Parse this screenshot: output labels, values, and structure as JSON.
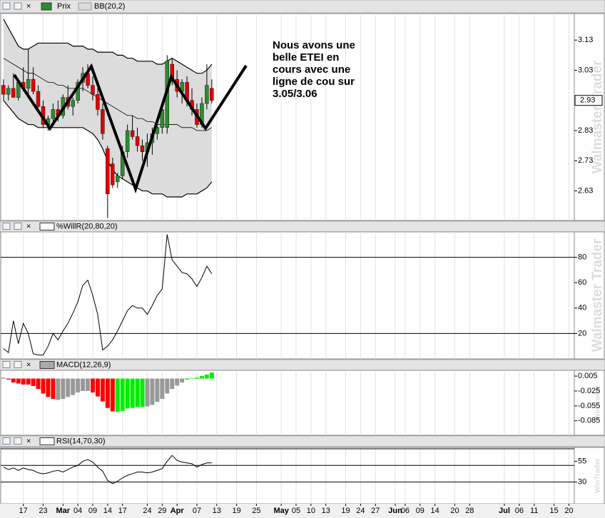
{
  "x_axis": {
    "xlim": [
      -0.7,
      115.1
    ],
    "grid": true,
    "xticks": [
      {
        "value": 4,
        "label": "17"
      },
      {
        "value": 8,
        "label": "23"
      },
      {
        "value": 12,
        "label": "Mar"
      },
      {
        "value": 15,
        "label": "04"
      },
      {
        "value": 18,
        "label": "09"
      },
      {
        "value": 21,
        "label": "14"
      },
      {
        "value": 24,
        "label": "17"
      },
      {
        "value": 29,
        "label": "24"
      },
      {
        "value": 32,
        "label": "29"
      },
      {
        "value": 35,
        "label": "Apr"
      },
      {
        "value": 39,
        "label": "07"
      },
      {
        "value": 43,
        "label": "13"
      },
      {
        "value": 47,
        "label": "19"
      },
      {
        "value": 51,
        "label": "25"
      },
      {
        "value": 56,
        "label": "May"
      },
      {
        "value": 59,
        "label": "05"
      },
      {
        "value": 62,
        "label": "10"
      },
      {
        "value": 65,
        "label": "13"
      },
      {
        "value": 69,
        "label": "19"
      },
      {
        "value": 72,
        "label": "24"
      },
      {
        "value": 75,
        "label": "27"
      },
      {
        "value": 79,
        "label": "Jun"
      },
      {
        "value": 81,
        "label": "06"
      },
      {
        "value": 84,
        "label": "09"
      },
      {
        "value": 87,
        "label": "14"
      },
      {
        "value": 91,
        "label": "20"
      },
      {
        "value": 94,
        "label": "28"
      },
      {
        "value": 101,
        "label": "Jul"
      },
      {
        "value": 104,
        "label": "06"
      },
      {
        "value": 107,
        "label": "11"
      },
      {
        "value": 111,
        "label": "15"
      },
      {
        "value": 114,
        "label": "20"
      }
    ]
  },
  "watermarks": [
    "Walmaster Trader",
    "WinTrader"
  ],
  "chart_data": [
    {
      "type": "candlestick",
      "title": "Prix",
      "up_color": "#2e8b2e",
      "down_color": "#e00000",
      "ylim": [
        2.532,
        3.218
      ],
      "yticks": [
        2.63,
        2.73,
        2.83,
        3.03,
        3.13
      ],
      "last_price": 2.93,
      "annotation": "Nous avons une belle ETEI en cours avec une ligne de cou sur 3.05/3.06",
      "open": [
        2.98,
        2.95,
        2.97,
        2.94,
        2.99,
        2.97,
        3.0,
        2.96,
        2.91,
        2.85,
        2.87,
        2.9,
        2.88,
        2.94,
        2.91,
        2.93,
        2.99,
        3.02,
        2.98,
        2.95,
        2.9,
        2.77,
        2.72,
        2.66,
        2.68,
        2.76,
        2.83,
        2.81,
        2.78,
        2.76,
        2.79,
        2.82,
        2.84,
        2.84,
        3.05,
        3.0,
        2.96,
        2.99,
        2.93,
        2.9,
        2.85,
        2.92,
        2.97
      ],
      "high": [
        3.0,
        2.98,
        3.02,
        3.0,
        3.04,
        3.1,
        3.04,
        2.98,
        2.93,
        2.88,
        2.92,
        2.93,
        2.95,
        2.98,
        2.94,
        3.0,
        3.04,
        3.05,
        3.01,
        2.97,
        2.92,
        2.78,
        2.74,
        2.69,
        2.78,
        2.85,
        2.88,
        2.84,
        2.8,
        2.82,
        2.84,
        2.86,
        2.92,
        3.08,
        3.07,
        3.03,
        3.0,
        3.01,
        2.97,
        2.92,
        2.94,
        3.05,
        3.0
      ],
      "low": [
        2.93,
        2.93,
        2.94,
        2.93,
        2.96,
        2.95,
        2.95,
        2.9,
        2.84,
        2.83,
        2.85,
        2.86,
        2.87,
        2.9,
        2.88,
        2.92,
        2.96,
        2.97,
        2.93,
        2.88,
        2.8,
        2.54,
        2.64,
        2.64,
        2.67,
        2.74,
        2.8,
        2.76,
        2.73,
        2.71,
        2.75,
        2.8,
        2.82,
        2.82,
        2.98,
        2.94,
        2.92,
        2.91,
        2.88,
        2.84,
        2.84,
        2.9,
        2.92
      ],
      "close": [
        2.95,
        2.97,
        2.94,
        2.99,
        2.97,
        3.0,
        2.96,
        2.91,
        2.85,
        2.87,
        2.9,
        2.88,
        2.94,
        2.91,
        2.93,
        2.99,
        3.02,
        2.98,
        2.95,
        2.9,
        2.82,
        2.62,
        2.65,
        2.68,
        2.76,
        2.83,
        2.81,
        2.78,
        2.76,
        2.79,
        2.82,
        2.84,
        2.9,
        3.06,
        3.0,
        2.96,
        2.99,
        2.93,
        2.9,
        2.85,
        2.92,
        2.98,
        2.93
      ],
      "bands": {
        "name": "BB(20,2)",
        "color": "#000000",
        "fill": "#dcdcdc",
        "upper": [
          3.2,
          3.17,
          3.14,
          3.11,
          3.1,
          3.1,
          3.11,
          3.12,
          3.12,
          3.12,
          3.12,
          3.12,
          3.12,
          3.12,
          3.11,
          3.11,
          3.11,
          3.1,
          3.1,
          3.09,
          3.09,
          3.09,
          3.09,
          3.08,
          3.08,
          3.07,
          3.07,
          3.06,
          3.06,
          3.06,
          3.06,
          3.05,
          3.05,
          3.06,
          3.07,
          3.06,
          3.05,
          3.04,
          3.03,
          3.02,
          3.02,
          3.03,
          3.05
        ],
        "middle": [
          3.07,
          3.06,
          3.05,
          3.04,
          3.03,
          3.02,
          3.02,
          3.01,
          3.0,
          2.99,
          2.99,
          2.98,
          2.98,
          2.97,
          2.97,
          2.97,
          2.97,
          2.96,
          2.95,
          2.94,
          2.93,
          2.92,
          2.91,
          2.9,
          2.89,
          2.88,
          2.88,
          2.87,
          2.87,
          2.86,
          2.86,
          2.85,
          2.85,
          2.85,
          2.85,
          2.85,
          2.84,
          2.84,
          2.84,
          2.83,
          2.83,
          2.83,
          2.84
        ],
        "lower": [
          2.93,
          2.91,
          2.89,
          2.87,
          2.86,
          2.85,
          2.85,
          2.84,
          2.84,
          2.84,
          2.84,
          2.84,
          2.84,
          2.84,
          2.84,
          2.84,
          2.84,
          2.83,
          2.82,
          2.8,
          2.77,
          2.73,
          2.7,
          2.68,
          2.67,
          2.66,
          2.65,
          2.64,
          2.63,
          2.63,
          2.62,
          2.62,
          2.62,
          2.61,
          2.61,
          2.61,
          2.61,
          2.62,
          2.62,
          2.62,
          2.63,
          2.64,
          2.66
        ]
      }
    },
    {
      "type": "line",
      "title": "%WillR(20,80,20)",
      "color": "#000000",
      "ylim": [
        0,
        100
      ],
      "yticks": [
        20,
        40,
        60,
        80
      ],
      "levels": [
        80,
        20
      ],
      "values": [
        8,
        5,
        30,
        12,
        28,
        20,
        4,
        3,
        3,
        10,
        20,
        15,
        22,
        28,
        36,
        45,
        58,
        62,
        50,
        35,
        7,
        10,
        15,
        22,
        30,
        38,
        42,
        40,
        40,
        35,
        42,
        50,
        55,
        98,
        78,
        73,
        68,
        67,
        63,
        57,
        64,
        73,
        67
      ]
    },
    {
      "type": "bar",
      "title": "MACD(12,26,9)",
      "ylim": [
        -0.114,
        0.0166
      ],
      "yticks": [
        0.005,
        -0.025,
        -0.055,
        -0.085
      ],
      "values": [
        0.002,
        -0.002,
        -0.008,
        -0.01,
        -0.012,
        -0.012,
        -0.015,
        -0.021,
        -0.03,
        -0.037,
        -0.041,
        -0.043,
        -0.041,
        -0.037,
        -0.033,
        -0.028,
        -0.025,
        -0.025,
        -0.028,
        -0.036,
        -0.046,
        -0.059,
        -0.066,
        -0.067,
        -0.065,
        -0.06,
        -0.059,
        -0.057,
        -0.057,
        -0.056,
        -0.053,
        -0.047,
        -0.041,
        -0.03,
        -0.021,
        -0.014,
        -0.008,
        -0.002,
        0.001,
        0.002,
        0.005,
        0.008,
        0.012
      ],
      "colors": [
        "#999999",
        "#ff0000",
        "#ff0000",
        "#ff0000",
        "#ff0000",
        "#ff0000",
        "#ff0000",
        "#ff0000",
        "#ff0000",
        "#ff0000",
        "#ff0000",
        "#999999",
        "#999999",
        "#999999",
        "#999999",
        "#999999",
        "#999999",
        "#999999",
        "#ff0000",
        "#ff0000",
        "#ff0000",
        "#ff0000",
        "#ff0000",
        "#00ee00",
        "#00ee00",
        "#00ee00",
        "#00ee00",
        "#00ee00",
        "#00ee00",
        "#999999",
        "#999999",
        "#999999",
        "#999999",
        "#999999",
        "#999999",
        "#999999",
        "#999999",
        "#00ee00",
        "#00ee00",
        "#00ee00",
        "#00ee00",
        "#00ee00",
        "#00ee00"
      ]
    },
    {
      "type": "line",
      "title": "RSI(14,70,30)",
      "color": "#000000",
      "ylim": [
        3.9,
        71.7
      ],
      "yticks": [
        30,
        55
      ],
      "levels": [
        70,
        50,
        30
      ],
      "values": [
        48,
        45,
        47,
        44,
        47,
        45,
        44,
        41,
        40,
        41,
        43,
        44,
        42,
        45,
        48,
        50,
        55,
        57,
        54,
        48,
        43,
        32,
        28,
        31,
        35,
        38,
        40,
        42,
        42,
        41,
        42,
        44,
        46,
        55,
        62,
        56,
        54,
        53,
        52,
        48,
        51,
        53,
        53
      ]
    }
  ]
}
